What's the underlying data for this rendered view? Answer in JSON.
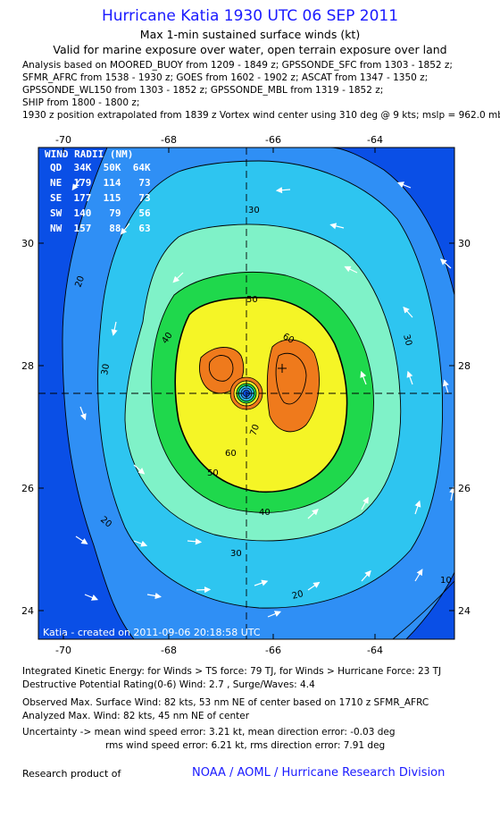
{
  "header": {
    "title": "Hurricane Katia 1930 UTC 06 SEP 2011",
    "subtitle": "Max 1-min sustained surface winds (kt)",
    "validity": "Valid for marine exposure over water, open terrain exposure over land",
    "analysis_lines": [
      "Analysis based on MOORED_BUOY from 1209 - 1849 z; GPSSONDE_SFC from 1303 - 1852 z;",
      "SFMR_AFRC from 1538 - 1930 z; GOES from 1602 - 1902 z; ASCAT from 1347 - 1350 z;",
      "GPSSONDE_WL150 from 1303 - 1852 z; GPSSONDE_MBL from 1319 - 1852 z;",
      "SHIP from 1800 - 1800 z;",
      "1930 z position extrapolated from 1839 z Vortex wind center using 310 deg @ 9 kts; mslp = 962.0 mb"
    ]
  },
  "map": {
    "lon_ticks_top": [
      "-70",
      "-68",
      "-66",
      "-64"
    ],
    "lon_ticks_bottom": [
      "-70",
      "-68",
      "-66",
      "-64"
    ],
    "lat_ticks_left": [
      "30",
      "28",
      "26",
      "24"
    ],
    "lat_ticks_right": [
      "30",
      "28",
      "26",
      "24"
    ],
    "lon_range": [
      -70.4,
      -62.8
    ],
    "lat_range": [
      23.6,
      31.8
    ],
    "center": {
      "lon": -66.5,
      "lat": 27.55
    },
    "max_wind_marker": {
      "lon": -66.0,
      "lat": 27.9
    },
    "contour_labels": [
      "10",
      "20",
      "20",
      "20",
      "30",
      "30",
      "30",
      "30",
      "40",
      "40",
      "50",
      "50",
      "60",
      "60",
      "70"
    ],
    "wind_radii": {
      "title": "WIND RADII (NM)",
      "header": "QD  34K  50K  64K",
      "rows": [
        "NE  179  114   73",
        "SE  177  115   73",
        "SW  140   79   56",
        "NW  157   88   63"
      ]
    },
    "created_text": "Katia - created on 2011-09-06 20:18:58 UTC",
    "palette": {
      "lt20": "#0a4fe6",
      "c20_30": "#2f8ff5",
      "c30_40": "#2ec5f0",
      "c40_50": "#7ff2c8",
      "c50_64": "#1fd84c",
      "c64_83": "#f5f526",
      "c83plus": "#ef7a1c"
    }
  },
  "stats": {
    "ike": "Integrated Kinetic Energy:  for Winds > TS force: 79 TJ,  for Winds > Hurricane Force: 23 TJ",
    "dpr": "Destructive Potential Rating(0-6)   Wind: 2.7 , Surge/Waves: 4.4",
    "observed": "Observed Max. Surface Wind: 82 kts, 53 nm NE of center based on 1710 z SFMR_AFRC",
    "analyzed": "Analyzed Max. Wind: 82 kts, 45 nm NE of center",
    "uncert1": "Uncertainty -> mean wind speed error: 3.21 kt,   mean direction error:  -0.03 deg",
    "uncert2": "rms wind speed error: 6.21 kt,   rms direction error: 7.91 deg"
  },
  "footer": {
    "label": "Research product of",
    "org": "NOAA / AOML / Hurricane Research Division"
  }
}
